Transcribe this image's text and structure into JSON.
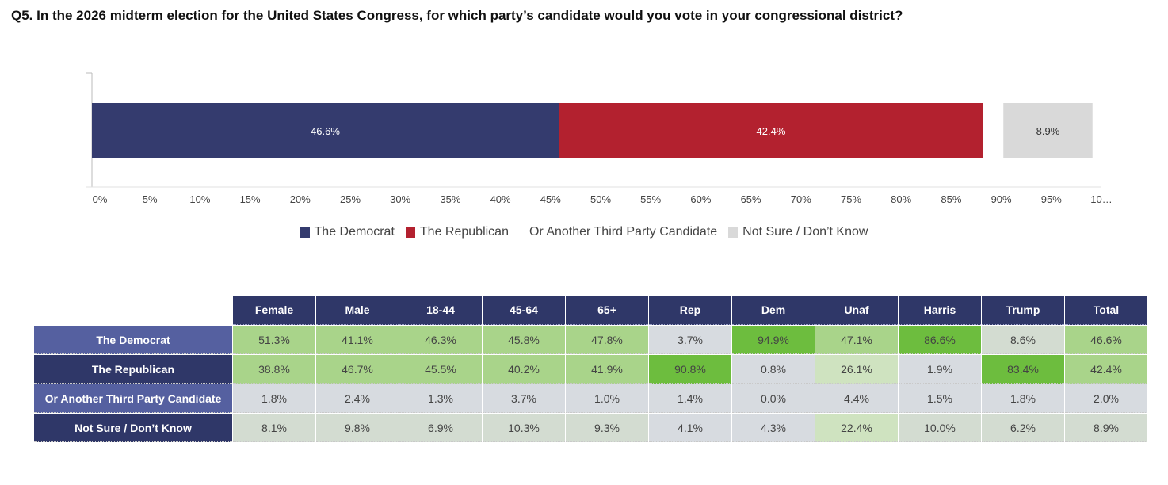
{
  "title": "Q5. In the 2026 midterm election for the United States Congress, for which party’s candidate would you vote in your congressional district?",
  "colors": {
    "democrat": "#343b6e",
    "republican": "#b3212f",
    "not_sure": "#d9d9d9",
    "header": "#2f3768",
    "row_dem_label": "#5560a0",
    "row_rep_label": "#2f3768",
    "row_other_label": "#5560a0",
    "row_ns_label": "#2f3768"
  },
  "chart_data": {
    "type": "bar",
    "orientation": "horizontal-stacked",
    "xlim": [
      0,
      100
    ],
    "xticks": [
      "0%",
      "5%",
      "10%",
      "15%",
      "20%",
      "25%",
      "30%",
      "35%",
      "40%",
      "45%",
      "50%",
      "55%",
      "60%",
      "65%",
      "70%",
      "75%",
      "80%",
      "85%",
      "90%",
      "95%",
      "10…"
    ],
    "series": [
      {
        "name": "The Democrat",
        "value": 46.6,
        "label": "46.6%",
        "color": "#343b6e"
      },
      {
        "name": "The Republican",
        "value": 42.4,
        "label": "42.4%",
        "color": "#b3212f"
      },
      {
        "name": "Or Another Third Party Candidate",
        "value": 2.0,
        "label": "",
        "color": "#ffffff"
      },
      {
        "name": "Not Sure / Don’t Know",
        "value": 8.9,
        "label": "8.9%",
        "color": "#d9d9d9"
      }
    ],
    "legend_position": "bottom"
  },
  "legend": [
    {
      "label": "The Democrat",
      "color": "#343b6e"
    },
    {
      "label": "The Republican",
      "color": "#b3212f"
    },
    {
      "label": "Or Another Third Party Candidate",
      "color": ""
    },
    {
      "label": "Not Sure / Don’t Know",
      "color": "#d9d9d9"
    }
  ],
  "table": {
    "columns": [
      "Female",
      "Male",
      "18-44",
      "45-64",
      "65+",
      "Rep",
      "Dem",
      "Unaf",
      "Harris",
      "Trump",
      "Total"
    ],
    "rows": [
      {
        "label": "The Democrat",
        "cells": [
          "51.3%",
          "41.1%",
          "46.3%",
          "45.8%",
          "47.8%",
          "3.7%",
          "94.9%",
          "47.1%",
          "86.6%",
          "8.6%",
          "46.6%"
        ]
      },
      {
        "label": "The Republican",
        "cells": [
          "38.8%",
          "46.7%",
          "45.5%",
          "40.2%",
          "41.9%",
          "90.8%",
          "0.8%",
          "26.1%",
          "1.9%",
          "83.4%",
          "42.4%"
        ]
      },
      {
        "label": "Or Another Third Party Candidate",
        "cells": [
          "1.8%",
          "2.4%",
          "1.3%",
          "3.7%",
          "1.0%",
          "1.4%",
          "0.0%",
          "4.4%",
          "1.5%",
          "1.8%",
          "2.0%"
        ]
      },
      {
        "label": "Not Sure / Don’t Know",
        "cells": [
          "8.1%",
          "9.8%",
          "6.9%",
          "10.3%",
          "9.3%",
          "4.1%",
          "4.3%",
          "22.4%",
          "10.0%",
          "6.2%",
          "8.9%"
        ]
      }
    ]
  }
}
